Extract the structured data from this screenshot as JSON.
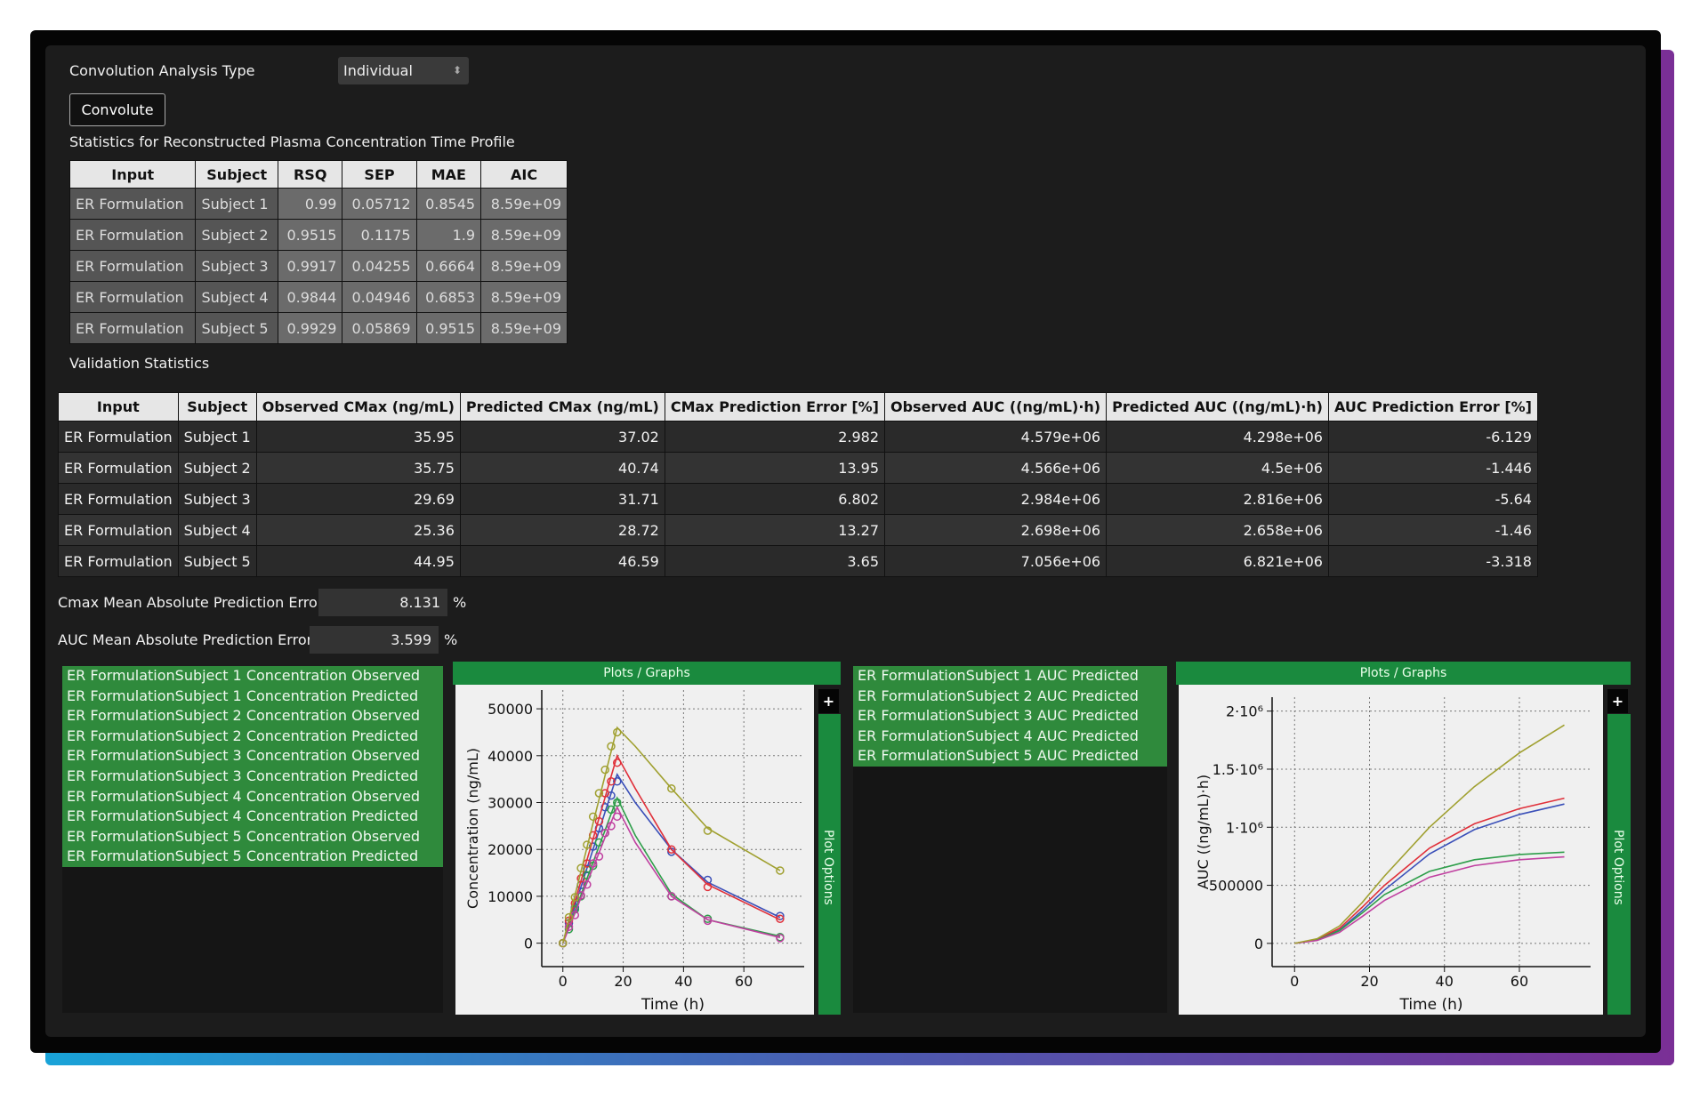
{
  "controls": {
    "analysis_type_label": "Convolution Analysis Type",
    "analysis_type_value": "Individual",
    "convolute_button": "Convolute"
  },
  "stats_title": "Statistics for Reconstructed Plasma Concentration Time Profile",
  "stats_table": {
    "columns": [
      "Input",
      "Subject",
      "RSQ",
      "SEP",
      "MAE",
      "AIC"
    ],
    "rows": [
      [
        "ER Formulation",
        "Subject 1",
        "0.99",
        "0.05712",
        "0.8545",
        "8.59e+09"
      ],
      [
        "ER Formulation",
        "Subject 2",
        "0.9515",
        "0.1175",
        "1.9",
        "8.59e+09"
      ],
      [
        "ER Formulation",
        "Subject 3",
        "0.9917",
        "0.04255",
        "0.6664",
        "8.59e+09"
      ],
      [
        "ER Formulation",
        "Subject 4",
        "0.9844",
        "0.04946",
        "0.6853",
        "8.59e+09"
      ],
      [
        "ER Formulation",
        "Subject 5",
        "0.9929",
        "0.05869",
        "0.9515",
        "8.59e+09"
      ]
    ]
  },
  "validation_title": "Validation Statistics",
  "validation_table": {
    "columns": [
      "Input",
      "Subject",
      "Observed CMax (ng/mL)",
      "Predicted CMax (ng/mL)",
      "CMax Prediction Error [%]",
      "Observed AUC ((ng/mL)·h)",
      "Predicted AUC ((ng/mL)·h)",
      "AUC Prediction Error [%]"
    ],
    "rows": [
      [
        "ER Formulation",
        "Subject 1",
        "35.95",
        "37.02",
        "2.982",
        "4.579e+06",
        "4.298e+06",
        "-6.129"
      ],
      [
        "ER Formulation",
        "Subject 2",
        "35.75",
        "40.74",
        "13.95",
        "4.566e+06",
        "4.5e+06",
        "-1.446"
      ],
      [
        "ER Formulation",
        "Subject 3",
        "29.69",
        "31.71",
        "6.802",
        "2.984e+06",
        "2.816e+06",
        "-5.64"
      ],
      [
        "ER Formulation",
        "Subject 4",
        "25.36",
        "28.72",
        "13.27",
        "2.698e+06",
        "2.658e+06",
        "-1.46"
      ],
      [
        "ER Formulation",
        "Subject 5",
        "44.95",
        "46.59",
        "3.65",
        "7.056e+06",
        "6.821e+06",
        "-3.318"
      ]
    ]
  },
  "cmax_error": {
    "label": "Cmax Mean Absolute Prediction Error",
    "value": "8.131",
    "unit": "%"
  },
  "auc_error": {
    "label": "AUC Mean Absolute Prediction Error",
    "value": "3.599",
    "unit": "%"
  },
  "panels": [
    {
      "header": "Plots / Graphs",
      "side_tab": "Plot Options",
      "button": "+"
    },
    {
      "header": "Plots / Graphs",
      "side_tab": "Plot Options",
      "button": "+"
    }
  ],
  "chart_data": [
    {
      "type": "line",
      "x_label": "Time (h)",
      "y_label": "Concentration (ng/mL)",
      "xlim": [
        -7,
        80
      ],
      "ylim": [
        -5000,
        54000
      ],
      "xticks": [
        0,
        20,
        40,
        60
      ],
      "yticks": [
        0,
        10000,
        20000,
        30000,
        40000,
        50000
      ],
      "grid": true,
      "x": [
        0,
        2,
        4,
        6,
        8,
        10,
        12,
        14,
        16,
        18,
        24,
        36,
        48,
        72
      ],
      "series": [
        {
          "name": "ER FormulationSubject 1 Concentration Observed",
          "mode": "markers",
          "color": "#3a4fb8",
          "values": [
            0,
            4300,
            7600,
            12400,
            15800,
            20600,
            24500,
            29000,
            31500,
            34500,
            null,
            19500,
            13500,
            5800
          ]
        },
        {
          "name": "ER FormulationSubject 1 Concentration Predicted",
          "mode": "lines",
          "color": "#3a4fb8",
          "values": [
            0,
            4000,
            8000,
            12000,
            16000,
            20000,
            24000,
            28000,
            32000,
            36000,
            30000,
            20000,
            13000,
            5500
          ]
        },
        {
          "name": "ER FormulationSubject 2 Concentration Observed",
          "mode": "markers",
          "color": "#e0303a",
          "values": [
            0,
            4800,
            8500,
            13800,
            17000,
            23000,
            26000,
            32000,
            34500,
            38500,
            null,
            20000,
            12000,
            5200
          ]
        },
        {
          "name": "ER FormulationSubject 2 Concentration Predicted",
          "mode": "lines",
          "color": "#e0303a",
          "values": [
            0,
            4400,
            8900,
            13300,
            17800,
            22200,
            26700,
            31100,
            35600,
            40000,
            33000,
            20000,
            12500,
            5000
          ]
        },
        {
          "name": "ER FormulationSubject 3 Concentration Observed",
          "mode": "markers",
          "color": "#2e9e4a",
          "values": [
            0,
            3000,
            7200,
            10000,
            14500,
            16500,
            21500,
            23500,
            28500,
            30000,
            null,
            10000,
            5200,
            1300
          ]
        },
        {
          "name": "ER FormulationSubject 3 Concentration Predicted",
          "mode": "lines",
          "color": "#2e9e4a",
          "values": [
            0,
            3400,
            6900,
            10300,
            13800,
            17200,
            20700,
            24100,
            27600,
            31000,
            23000,
            10500,
            5000,
            1500
          ]
        },
        {
          "name": "ER FormulationSubject 4 Concentration Observed",
          "mode": "markers",
          "color": "#c040a0",
          "values": [
            0,
            3500,
            6000,
            10200,
            12500,
            17000,
            18500,
            23500,
            25000,
            27000,
            null,
            10000,
            4800,
            1100
          ]
        },
        {
          "name": "ER FormulationSubject 4 Concentration Predicted",
          "mode": "lines",
          "color": "#c040a0",
          "values": [
            0,
            3200,
            6400,
            9700,
            12900,
            16100,
            19300,
            22600,
            25800,
            29000,
            21500,
            10000,
            5000,
            1200
          ]
        },
        {
          "name": "ER FormulationSubject 5 Concentration Observed",
          "mode": "markers",
          "color": "#a0a030",
          "values": [
            0,
            5500,
            9800,
            16000,
            21000,
            27000,
            32000,
            37000,
            42000,
            45000,
            null,
            33000,
            24000,
            15500
          ]
        },
        {
          "name": "ER FormulationSubject 5 Concentration Predicted",
          "mode": "lines",
          "color": "#a0a030",
          "values": [
            0,
            5100,
            10200,
            15300,
            20400,
            25600,
            30700,
            35800,
            40900,
            46000,
            42000,
            33000,
            24500,
            15500
          ]
        }
      ]
    },
    {
      "type": "line",
      "x_label": "Time (h)",
      "y_label": "AUC ((ng/mL)·h)",
      "xlim": [
        -6,
        79
      ],
      "ylim": [
        -200000,
        2120000
      ],
      "xticks": [
        0,
        20,
        40,
        60
      ],
      "yticks": [
        0,
        500000,
        {
          "value": 1000000,
          "label": "1·10⁶"
        },
        {
          "value": 1500000,
          "label": "1.5·10⁶"
        },
        {
          "value": 2000000,
          "label": "2·10⁶"
        }
      ],
      "grid": true,
      "x": [
        0,
        6,
        12,
        18,
        24,
        36,
        48,
        60,
        72
      ],
      "series": [
        {
          "name": "ER FormulationSubject 1 AUC Predicted",
          "mode": "lines",
          "color": "#3a4fb8",
          "values": [
            0,
            30000,
            115000,
            280000,
            460000,
            770000,
            980000,
            1110000,
            1200000
          ]
        },
        {
          "name": "ER FormulationSubject 2 AUC Predicted",
          "mode": "lines",
          "color": "#e0303a",
          "values": [
            0,
            35000,
            130000,
            310000,
            500000,
            820000,
            1030000,
            1160000,
            1250000
          ]
        },
        {
          "name": "ER FormulationSubject 3 AUC Predicted",
          "mode": "lines",
          "color": "#2e9e4a",
          "values": [
            0,
            28000,
            110000,
            260000,
            420000,
            620000,
            720000,
            765000,
            785000
          ]
        },
        {
          "name": "ER FormulationSubject 4 AUC Predicted",
          "mode": "lines",
          "color": "#c040a0",
          "values": [
            0,
            25000,
            95000,
            230000,
            370000,
            570000,
            670000,
            720000,
            745000
          ]
        },
        {
          "name": "ER FormulationSubject 5 AUC Predicted",
          "mode": "lines",
          "color": "#a0a030",
          "values": [
            0,
            40000,
            150000,
            350000,
            580000,
            1000000,
            1350000,
            1640000,
            1880000
          ]
        }
      ]
    }
  ]
}
